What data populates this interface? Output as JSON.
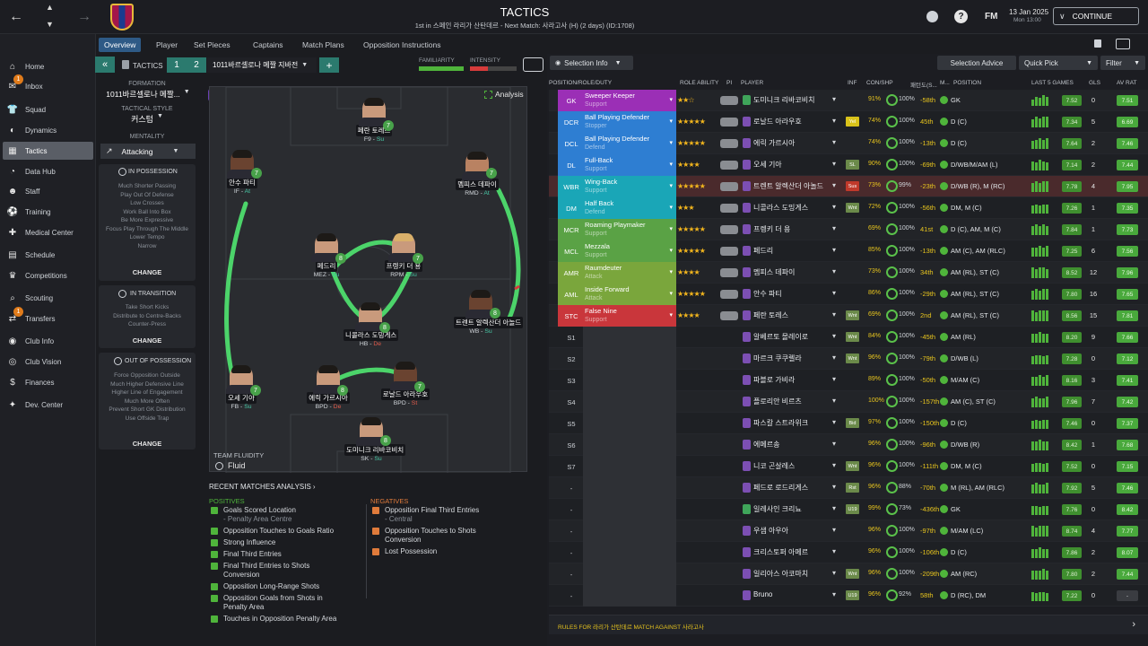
{
  "topbar": {
    "title": "TACTICS",
    "subtitle": "1st in 스페인 라리가 산탄데르 - Next Match: 사라고사 (H) (2 days) (ID:1708)",
    "date": "13 Jan 2025",
    "day": "Mon 13:00",
    "continue": "CONTINUE",
    "fm": "FM"
  },
  "sidebar": {
    "items": [
      {
        "label": "Home",
        "icon": "home-icon"
      },
      {
        "label": "Inbox",
        "icon": "inbox-icon",
        "badge": "1"
      },
      {
        "label": "Squad",
        "icon": "shirt-icon"
      },
      {
        "label": "Dynamics",
        "icon": "dynamics-icon"
      },
      {
        "label": "Tactics",
        "icon": "tactics-icon"
      },
      {
        "label": "Data Hub",
        "icon": "datahub-icon"
      },
      {
        "label": "Staff",
        "icon": "staff-icon"
      },
      {
        "label": "Training",
        "icon": "training-icon"
      },
      {
        "label": "Medical Center",
        "icon": "medical-icon"
      },
      {
        "label": "Schedule",
        "icon": "calendar-icon"
      },
      {
        "label": "Competitions",
        "icon": "trophy-icon"
      },
      {
        "label": "Scouting",
        "icon": "scout-icon"
      },
      {
        "label": "Transfers",
        "icon": "transfer-icon",
        "badge": "1"
      },
      {
        "label": "Club Info",
        "icon": "club-icon"
      },
      {
        "label": "Club Vision",
        "icon": "vision-icon"
      },
      {
        "label": "Finances",
        "icon": "finance-icon"
      },
      {
        "label": "Dev. Center",
        "icon": "dev-icon"
      }
    ]
  },
  "subtabs": [
    "Overview",
    "Player",
    "Set Pieces",
    "Captains",
    "Match Plans",
    "Opposition Instructions"
  ],
  "tacticbar": {
    "label": "TACTICS",
    "slot1": "1",
    "slot2": "2",
    "name": "1011바르셀로나 메짤 지바전",
    "familiarity": "FAMILIARITY",
    "intensity": "INTENSITY"
  },
  "left": {
    "formation_lbl": "FORMATION",
    "formation": "1011바르셀로나 메짤...",
    "style_lbl": "TACTICAL STYLE",
    "style": "커스텀",
    "mentality_lbl": "MENTALITY",
    "mentality": "Attacking",
    "inpos_title": "IN POSSESSION",
    "inpos": [
      "Much Shorter Passing",
      "Play Out Of Defense",
      "Low Crosses",
      "Work Ball Into Box",
      "Be More Expressive",
      "Focus Play Through The Middle",
      "Lower Tempo",
      "Narrow"
    ],
    "trans_title": "IN TRANSITION",
    "trans": [
      "Take Short Kicks",
      "Distribute to Centre-Backs",
      "Counter-Press"
    ],
    "oop_title": "OUT OF POSSESSION",
    "oop": [
      "Force Opposition Outside",
      "Much Higher Defensive Line",
      "Higher Line of Engagement",
      "Much More Often",
      "Prevent Short GK Distribution",
      "Use Offside Trap"
    ],
    "change": "CHANGE"
  },
  "pitch": {
    "analysis": "Analysis",
    "fluidity_lbl": "TEAM FLUIDITY",
    "fluidity": "Fluid",
    "players": [
      {
        "name": "페란 토레스",
        "role": "F9",
        "duty": "Su",
        "rating": "7"
      },
      {
        "name": "안수 파티",
        "role": "IF",
        "duty": "At",
        "rating": "7"
      },
      {
        "name": "멤피스 데파이",
        "role": "RMD",
        "duty": "At",
        "rating": "7"
      },
      {
        "name": "페드리",
        "role": "MEZ",
        "duty": "Su",
        "rating": "8"
      },
      {
        "name": "프렝키 더 용",
        "role": "RPM",
        "duty": "Su",
        "rating": "7"
      },
      {
        "name": "트렌트 알렉산더 아놀드",
        "role": "WB",
        "duty": "Su",
        "rating": "8"
      },
      {
        "name": "니콜라스 도밍게스",
        "role": "HB",
        "duty": "De",
        "rating": "8"
      },
      {
        "name": "오세 기아",
        "role": "FB",
        "duty": "Su",
        "rating": "7"
      },
      {
        "name": "에릭 가르시아",
        "role": "BPD",
        "duty": "De",
        "rating": "8"
      },
      {
        "name": "로날드 아라우호",
        "role": "BPD",
        "duty": "St",
        "rating": "7"
      },
      {
        "name": "도미니크 리바코비치",
        "role": "SK",
        "duty": "Su",
        "rating": "8"
      }
    ]
  },
  "analysis": {
    "title": "RECENT MATCHES ANALYSIS",
    "pos_lbl": "POSITIVES",
    "neg_lbl": "NEGATIVES",
    "positives": [
      [
        "Goals Scored Location",
        "- Penalty Area Centre"
      ],
      [
        "Opposition Touches to Goals Ratio"
      ],
      [
        "Strong Influence"
      ],
      [
        "Final Third Entries"
      ],
      [
        "Final Third Entries to Shots",
        "Conversion"
      ],
      [
        "Opposition Long-Range Shots"
      ],
      [
        "Opposition Goals from Shots in",
        "Penalty Area"
      ],
      [
        "Touches in Opposition Penalty Area"
      ]
    ],
    "negatives": [
      [
        "Opposition Final Third Entries",
        "- Central"
      ],
      [
        "Opposition Touches to Shots",
        "Conversion"
      ],
      [
        "Lost Possession"
      ]
    ]
  },
  "right": {
    "selection_info": "Selection Info",
    "selection_advice": "Selection Advice",
    "quick_pick": "Quick Pick",
    "filter": "Filter",
    "headers": [
      "POSITION/ROLE/DUTY",
      "ROLE ABILITY",
      "PI",
      "PLAYER",
      "INF",
      "CON/SHP",
      "패턴도(S...",
      "M...",
      "POSITION",
      "LAST 5 GAMES",
      "GLS",
      "AV RAT"
    ],
    "footer": "RULES FOR 라리가 산탄데르 MATCH AGAINST 사라고사",
    "rows": [
      {
        "pos": "GK",
        "color": "#9b2fb6",
        "role": "Sweeper Keeper",
        "duty": "Support",
        "stars": "★★☆",
        "name": "도미니크 리바코비치",
        "inf": "",
        "cond": "91%",
        "sharp": "100%",
        "rank": "-58th",
        "position": "GK",
        "last": [
          5,
          7,
          6,
          8,
          7
        ],
        "avg": "7.52",
        "gls": "0",
        "av": "7.51",
        "gk": true
      },
      {
        "pos": "DCR",
        "color": "#2e7ed2",
        "role": "Ball Playing Defender",
        "duty": "Stopper",
        "stars": "★★★★★",
        "name": "로날드 아라우호",
        "inf": "Yel",
        "infc": "#d9c21a",
        "cond": "74%",
        "sharp": "100%",
        "rank": "45th",
        "position": "D (C)",
        "last": [
          6,
          8,
          7,
          8,
          8
        ],
        "avg": "7.34",
        "gls": "5",
        "av": "6.69"
      },
      {
        "pos": "DCL",
        "color": "#2e7ed2",
        "role": "Ball Playing Defender",
        "duty": "Defend",
        "stars": "★★★★★",
        "name": "에릭 가르시아",
        "inf": "",
        "cond": "74%",
        "sharp": "100%",
        "rank": "-13th",
        "position": "D (C)",
        "last": [
          6,
          7,
          8,
          7,
          8
        ],
        "avg": "7.64",
        "gls": "2",
        "av": "7.46"
      },
      {
        "pos": "DL",
        "color": "#2e7ed2",
        "role": "Full-Back",
        "duty": "Support",
        "stars": "★★★★",
        "name": "오세 기아",
        "inf": "SL",
        "infc": "#6b8a4a",
        "cond": "90%",
        "sharp": "100%",
        "rank": "-69th",
        "position": "D/WB/M/AM (L)",
        "last": [
          7,
          6,
          8,
          7,
          6
        ],
        "avg": "7.14",
        "gls": "2",
        "av": "7.44"
      },
      {
        "pos": "WBR",
        "color": "#1aa6b7",
        "role": "Wing-Back",
        "duty": "Support",
        "stars": "★★★★★",
        "name": "트렌트 알렉산더 아놀드",
        "inf": "Sus",
        "infc": "#c0392b",
        "cond": "73%",
        "sharp": "99%",
        "rank": "-23th",
        "position": "D/WB (R), M (RC)",
        "last": [
          7,
          8,
          7,
          8,
          8
        ],
        "avg": "7.78",
        "gls": "4",
        "av": "7.95",
        "highlight": true
      },
      {
        "pos": "DM",
        "color": "#1aa6b7",
        "role": "Half Back",
        "duty": "Defend",
        "stars": "★★★",
        "name": "니콜라스 도밍게스",
        "inf": "Wnt",
        "infc": "#6b8a4a",
        "cond": "72%",
        "sharp": "100%",
        "rank": "-56th",
        "position": "DM, M (C)",
        "last": [
          6,
          7,
          6,
          7,
          7
        ],
        "avg": "7.26",
        "gls": "1",
        "av": "7.35"
      },
      {
        "pos": "MCR",
        "color": "#5aa245",
        "role": "Roaming Playmaker",
        "duty": "Support",
        "stars": "★★★★★",
        "name": "프렝키 더 용",
        "inf": "",
        "cond": "69%",
        "sharp": "100%",
        "rank": "41st",
        "position": "D (C), AM, M (C)",
        "last": [
          7,
          8,
          7,
          8,
          7
        ],
        "avg": "7.84",
        "gls": "1",
        "av": "7.73"
      },
      {
        "pos": "MCL",
        "color": "#5aa245",
        "role": "Mezzala",
        "duty": "Support",
        "stars": "★★★★★",
        "name": "페드리",
        "inf": "",
        "cond": "85%",
        "sharp": "100%",
        "rank": "-13th",
        "position": "AM (C), AM (RLC)",
        "last": [
          7,
          7,
          8,
          7,
          8
        ],
        "avg": "7.25",
        "gls": "6",
        "av": "7.56"
      },
      {
        "pos": "AMR",
        "color": "#7aa63c",
        "role": "Raumdeuter",
        "duty": "Attack",
        "stars": "★★★★",
        "name": "멤피스 데파이",
        "inf": "",
        "cond": "73%",
        "sharp": "100%",
        "rank": "34th",
        "position": "AM (RL), ST (C)",
        "last": [
          8,
          7,
          8,
          8,
          7
        ],
        "avg": "8.52",
        "gls": "12",
        "av": "7.96"
      },
      {
        "pos": "AML",
        "color": "#7aa63c",
        "role": "Inside Forward",
        "duty": "Attack",
        "stars": "★★★★★",
        "name": "안수 파티",
        "inf": "",
        "cond": "86%",
        "sharp": "100%",
        "rank": "-29th",
        "position": "AM (RL), ST (C)",
        "last": [
          7,
          8,
          7,
          8,
          8
        ],
        "avg": "7.80",
        "gls": "16",
        "av": "7.65"
      },
      {
        "pos": "STC",
        "color": "#c9363b",
        "role": "False Nine",
        "duty": "Support",
        "stars": "★★★★",
        "name": "페란 토레스",
        "inf": "Wnt",
        "infc": "#6b8a4a",
        "cond": "69%",
        "sharp": "100%",
        "rank": "2nd",
        "position": "AM (RL), ST (C)",
        "last": [
          8,
          7,
          8,
          8,
          8
        ],
        "avg": "8.56",
        "gls": "15",
        "av": "7.81"
      },
      {
        "pos": "S1",
        "name": "알베르토 몰레이로",
        "inf": "Wnt",
        "infc": "#6b8a4a",
        "cond": "84%",
        "sharp": "100%",
        "rank": "-45th",
        "position": "AM (RL)",
        "last": [
          7,
          7,
          8,
          7,
          7
        ],
        "avg": "8.20",
        "gls": "9",
        "av": "7.66"
      },
      {
        "pos": "S2",
        "name": "마르크 쿠쿠렐라",
        "inf": "Wnt",
        "infc": "#6b8a4a",
        "cond": "96%",
        "sharp": "100%",
        "rank": "-79th",
        "position": "D/WB (L)",
        "last": [
          6,
          7,
          7,
          6,
          7
        ],
        "avg": "7.28",
        "gls": "0",
        "av": "7.12"
      },
      {
        "pos": "S3",
        "name": "파블로 가비라",
        "inf": "",
        "cond": "89%",
        "sharp": "100%",
        "rank": "-50th",
        "position": "M/AM (C)",
        "last": [
          7,
          7,
          8,
          7,
          8
        ],
        "avg": "8.16",
        "gls": "3",
        "av": "7.41"
      },
      {
        "pos": "S4",
        "name": "플로리안 비르츠",
        "inf": "",
        "cond": "100%",
        "sharp": "100%",
        "rank": "-157th",
        "position": "AM (C), ST (C)",
        "last": [
          7,
          8,
          7,
          7,
          8
        ],
        "avg": "7.96",
        "gls": "7",
        "av": "7.42"
      },
      {
        "pos": "S5",
        "name": "파스칼 스트라위크",
        "inf": "Bid",
        "infc": "#6b8a4a",
        "cond": "97%",
        "sharp": "100%",
        "rank": "-150th",
        "position": "D (C)",
        "last": [
          6,
          7,
          6,
          7,
          7
        ],
        "avg": "7.46",
        "gls": "0",
        "av": "7.37"
      },
      {
        "pos": "S6",
        "name": "에메르송",
        "inf": "",
        "cond": "96%",
        "sharp": "100%",
        "rank": "-96th",
        "position": "D/WB (R)",
        "last": [
          7,
          7,
          8,
          7,
          7
        ],
        "avg": "8.42",
        "gls": "1",
        "av": "7.68"
      },
      {
        "pos": "S7",
        "name": "니코 곤살레스",
        "inf": "Wnt",
        "infc": "#6b8a4a",
        "cond": "96%",
        "sharp": "100%",
        "rank": "-111th",
        "position": "DM, M (C)",
        "last": [
          6,
          7,
          7,
          6,
          7
        ],
        "avg": "7.52",
        "gls": "0",
        "av": "7.15"
      },
      {
        "pos": "-",
        "name": "페드로 로드리게스",
        "inf": "Rst",
        "infc": "#6b8a4a",
        "cond": "96%",
        "sharp": "88%",
        "rank": "-70th",
        "position": "M (RL), AM (RLC)",
        "last": [
          7,
          8,
          7,
          7,
          8
        ],
        "avg": "7.92",
        "gls": "5",
        "av": "7.46"
      },
      {
        "pos": "-",
        "name": "일레사인 크리뇨",
        "inf": "U19",
        "infc": "#6b8a4a",
        "cond": "99%",
        "sharp": "73%",
        "rank": "-436th",
        "position": "GK",
        "last": [
          7,
          7,
          6,
          7,
          7
        ],
        "avg": "7.76",
        "gls": "0",
        "av": "8.42",
        "gk": true
      },
      {
        "pos": "-",
        "name": "우샘 아우아",
        "inf": "",
        "cond": "96%",
        "sharp": "100%",
        "rank": "-97th",
        "position": "M/AM (LC)",
        "last": [
          8,
          7,
          8,
          8,
          8
        ],
        "avg": "8.74",
        "gls": "4",
        "av": "7.77"
      },
      {
        "pos": "-",
        "name": "크리스토퍼 아메르",
        "inf": "",
        "cond": "96%",
        "sharp": "100%",
        "rank": "-106th",
        "position": "D (C)",
        "last": [
          7,
          7,
          8,
          7,
          7
        ],
        "avg": "7.86",
        "gls": "2",
        "av": "8.07"
      },
      {
        "pos": "-",
        "name": "일리아스 아코마치",
        "inf": "Wnt",
        "infc": "#6b8a4a",
        "cond": "96%",
        "sharp": "100%",
        "rank": "-209th",
        "position": "AM (RC)",
        "last": [
          7,
          7,
          7,
          8,
          7
        ],
        "avg": "7.80",
        "gls": "2",
        "av": "7.44"
      },
      {
        "pos": "-",
        "name": "Bruno",
        "inf": "U19",
        "infc": "#6b8a4a",
        "cond": "96%",
        "sharp": "92%",
        "rank": "58th",
        "position": "D (RC), DM",
        "last": [
          7,
          6,
          7,
          7,
          6
        ],
        "avg": "7.22",
        "gls": "0",
        "av": "-"
      }
    ]
  }
}
